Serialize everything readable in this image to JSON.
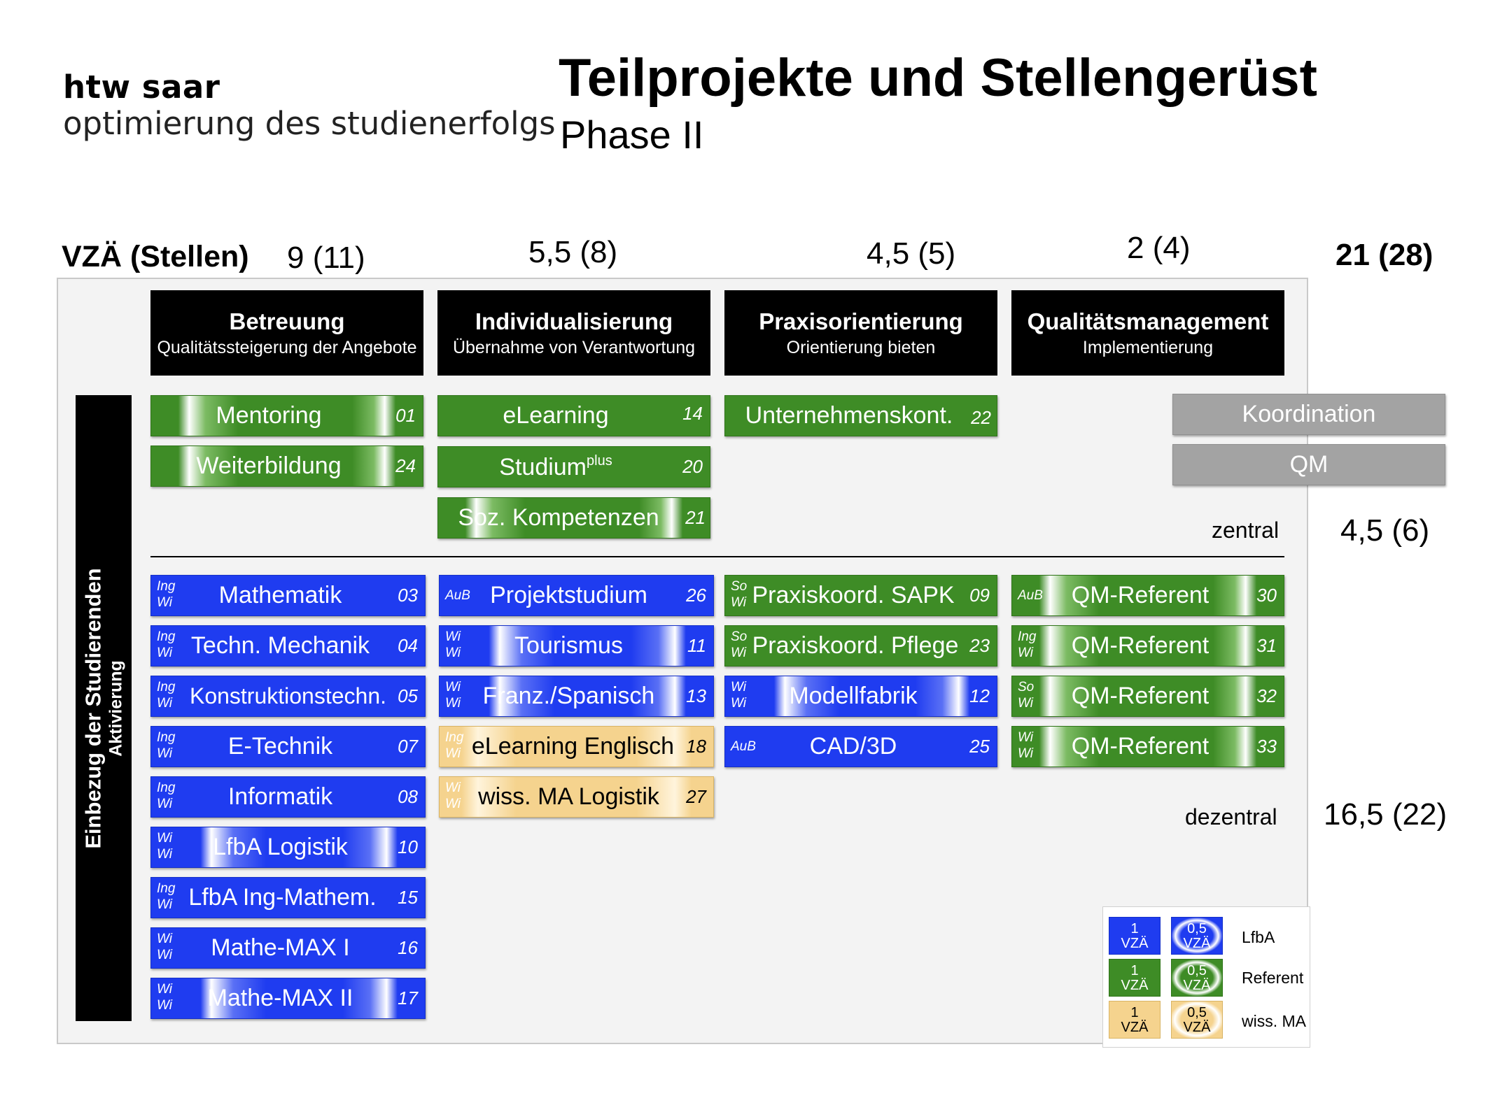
{
  "logo": {
    "name": "htw saar",
    "subtitle": "optimierung des studienerfolgs"
  },
  "title": "Teilprojekte und Stellengerüst",
  "subtitle": "Phase II",
  "vza_label": "VZÄ (Stellen)",
  "column_totals": [
    "9 (11)",
    "5,5 (8)",
    "4,5 (5)",
    "2 (4)"
  ],
  "grand_total": "21 (28)",
  "side_label": {
    "line1": "Einbezug der Studierenden",
    "line2": "Aktivierung"
  },
  "headers": [
    {
      "title": "Betreuung",
      "sub": "Qualitätssteigerung der Angebote"
    },
    {
      "title": "Individualisierung",
      "sub": "Übernahme von Verantwortung"
    },
    {
      "title": "Praxisorientierung",
      "sub": "Orientierung bieten"
    },
    {
      "title": "Qualitätsmanagement",
      "sub": "Implementierung"
    }
  ],
  "central": {
    "col1": [
      {
        "label": "Mentoring",
        "code": "01"
      },
      {
        "label": "Weiterbildung",
        "code": "24"
      }
    ],
    "col2": [
      {
        "label": "eLearning",
        "code": "14"
      },
      {
        "label": "Studium",
        "label_sup": "plus",
        "code": "20"
      },
      {
        "label": "Soz. Kompetenzen",
        "code": "21"
      }
    ],
    "col3": [
      {
        "label": "Unternehmenskont.",
        "code": "22"
      }
    ],
    "coord": [
      "Koordination",
      "QM"
    ]
  },
  "zentral_label": "zentral",
  "zentral_total": "4,5 (6)",
  "decentral": {
    "col1": [
      {
        "tag": [
          "Ing",
          "Wi"
        ],
        "label": "Mathematik",
        "code": "03"
      },
      {
        "tag": [
          "Ing",
          "Wi"
        ],
        "label": "Techn. Mechanik",
        "code": "04"
      },
      {
        "tag": [
          "Ing",
          "Wi"
        ],
        "label": "Konstruktionstechn.",
        "code": "05"
      },
      {
        "tag": [
          "Ing",
          "Wi"
        ],
        "label": "E-Technik",
        "code": "07"
      },
      {
        "tag": [
          "Ing",
          "Wi"
        ],
        "label": "Informatik",
        "code": "08"
      },
      {
        "tag": [
          "Wi",
          "Wi"
        ],
        "label": "LfbA Logistik",
        "code": "10"
      },
      {
        "tag": [
          "Ing",
          "Wi"
        ],
        "label": "LfbA Ing-Mathem.",
        "code": "15"
      },
      {
        "tag": [
          "Wi",
          "Wi"
        ],
        "label": "Mathe-MAX I",
        "code": "16"
      },
      {
        "tag": [
          "Wi",
          "Wi"
        ],
        "label": "Mathe-MAX II",
        "code": "17"
      }
    ],
    "col2": [
      {
        "tag": [
          "AuB"
        ],
        "label": "Projektstudium",
        "code": "26"
      },
      {
        "tag": [
          "Wi",
          "Wi"
        ],
        "label": "Tourismus",
        "code": "11"
      },
      {
        "tag": [
          "Wi",
          "Wi"
        ],
        "label": "Franz./Spanisch",
        "code": "13"
      },
      {
        "tag": [
          "Ing",
          "Wi"
        ],
        "label": "eLearning Englisch",
        "code": "18"
      },
      {
        "tag": [
          "Wi",
          "Wi"
        ],
        "label": "wiss. MA Logistik",
        "code": "27"
      }
    ],
    "col3": [
      {
        "tag": [
          "So",
          "Wi"
        ],
        "label": "Praxiskoord. SAPK",
        "code": "09"
      },
      {
        "tag": [
          "So",
          "Wi"
        ],
        "label": "Praxiskoord. Pflege",
        "code": "23"
      },
      {
        "tag": [
          "Wi",
          "Wi"
        ],
        "label": "Modellfabrik",
        "code": "12"
      },
      {
        "tag": [
          "AuB"
        ],
        "label": "CAD/3D",
        "code": "25"
      }
    ],
    "col4": [
      {
        "tag": [
          "AuB"
        ],
        "label": "QM-Referent",
        "code": "30"
      },
      {
        "tag": [
          "Ing",
          "Wi"
        ],
        "label": "QM-Referent",
        "code": "31"
      },
      {
        "tag": [
          "So",
          "Wi"
        ],
        "label": "QM-Referent",
        "code": "32"
      },
      {
        "tag": [
          "Wi",
          "Wi"
        ],
        "label": "QM-Referent",
        "code": "33"
      }
    ]
  },
  "dezentral_label": "dezentral",
  "dezentral_total": "16,5 (22)",
  "legend": {
    "full": [
      "1",
      "VZÄ"
    ],
    "half": [
      "0,5",
      "VZÄ"
    ],
    "rows": [
      "LfbA",
      "Referent",
      "wiss. MA"
    ]
  }
}
